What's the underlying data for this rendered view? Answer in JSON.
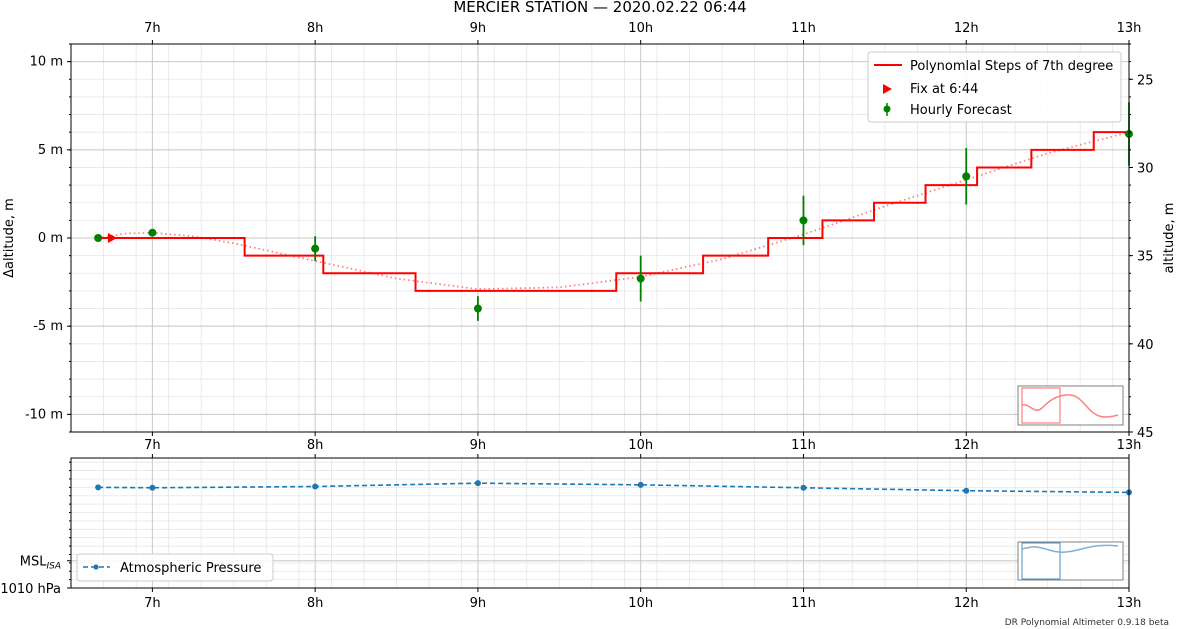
{
  "footer": "DR Polynomial Altimeter 0.9.18 beta",
  "chart_data": [
    {
      "type": "line",
      "title": "MERCIER STATION — 2020.02.22 06:44",
      "xlabel": "",
      "ylabel_left": "Δaltitude, m",
      "ylabel_right": "altitude, m",
      "xlim": [
        "06:30",
        "13:00"
      ],
      "ylim_left": [
        -11,
        11
      ],
      "ylim_right": [
        25,
        47
      ],
      "x_ticks": [
        "7h",
        "8h",
        "9h",
        "10h",
        "11h",
        "12h",
        "13h"
      ],
      "y_ticks_left": [
        "10 m",
        "5 m",
        "0 m",
        "-5 m",
        "-10 m"
      ],
      "y_ticks_right": [
        "25",
        "30",
        "35",
        "40",
        "45"
      ],
      "grid": true,
      "legend_position": "upper right",
      "legend": {
        "steps": "Polynomlal Steps of 7th degree",
        "fix": "Fix at 6:44",
        "forecast": "Hourly Forecast"
      },
      "colors": {
        "steps": "#ff0000",
        "fix": "#ff0000",
        "forecast": "#008000",
        "poly": "#ff7f7f"
      },
      "step_series": [
        {
          "x0": "06:40",
          "x1": "07:34",
          "y": 0
        },
        {
          "x0": "07:34",
          "x1": "08:03",
          "y": -1
        },
        {
          "x0": "08:03",
          "x1": "08:37",
          "y": -2
        },
        {
          "x0": "08:37",
          "x1": "09:51",
          "y": -3
        },
        {
          "x0": "09:51",
          "x1": "10:23",
          "y": -2
        },
        {
          "x0": "10:23",
          "x1": "10:47",
          "y": -1
        },
        {
          "x0": "10:47",
          "x1": "11:07",
          "y": 0
        },
        {
          "x0": "11:07",
          "x1": "11:26",
          "y": 1
        },
        {
          "x0": "11:26",
          "x1": "11:45",
          "y": 2
        },
        {
          "x0": "11:45",
          "x1": "12:04",
          "y": 3
        },
        {
          "x0": "12:04",
          "x1": "12:24",
          "y": 4
        },
        {
          "x0": "12:24",
          "x1": "12:47",
          "y": 5
        },
        {
          "x0": "12:47",
          "x1": "13:00",
          "y": 6
        }
      ],
      "poly_curve": [
        {
          "x": "06:40",
          "y": 0
        },
        {
          "x": "06:50",
          "y": 0.25
        },
        {
          "x": "07:00",
          "y": 0.3
        },
        {
          "x": "07:15",
          "y": 0.1
        },
        {
          "x": "07:30",
          "y": -0.3
        },
        {
          "x": "08:00",
          "y": -1.3
        },
        {
          "x": "08:30",
          "y": -2.3
        },
        {
          "x": "09:00",
          "y": -2.9
        },
        {
          "x": "09:30",
          "y": -2.8
        },
        {
          "x": "10:00",
          "y": -2.2
        },
        {
          "x": "10:30",
          "y": -1.2
        },
        {
          "x": "11:00",
          "y": 0.2
        },
        {
          "x": "11:30",
          "y": 1.8
        },
        {
          "x": "12:00",
          "y": 3.3
        },
        {
          "x": "12:30",
          "y": 4.8
        },
        {
          "x": "13:00",
          "y": 6.0
        }
      ],
      "fix_point": {
        "x": "06:44",
        "y": 0
      },
      "forecast": [
        {
          "x": "06:40",
          "y": 0.0,
          "err": 0
        },
        {
          "x": "07:00",
          "y": 0.3,
          "err": 0
        },
        {
          "x": "08:00",
          "y": -0.6,
          "err": 0.7
        },
        {
          "x": "09:00",
          "y": -4.0,
          "err": 0.7
        },
        {
          "x": "10:00",
          "y": -2.3,
          "err": 1.3
        },
        {
          "x": "11:00",
          "y": 1.0,
          "err": 1.4
        },
        {
          "x": "12:00",
          "y": 3.5,
          "err": 1.6
        },
        {
          "x": "13:00",
          "y": 5.9,
          "err": 1.8
        }
      ]
    },
    {
      "type": "line",
      "title": "",
      "xlim": [
        "06:30",
        "13:00"
      ],
      "x_ticks": [
        "7h",
        "8h",
        "9h",
        "10h",
        "11h",
        "12h",
        "13h"
      ],
      "y_ticks": [
        "MSL_ISA",
        "1010 hPa"
      ],
      "y_ticks_display": {
        "msl_main": "MSL",
        "msl_sub": "ISA",
        "bottom": "1010 hPa"
      },
      "grid": true,
      "legend_position": "lower left",
      "series": [
        {
          "name": "Atmospheric Pressure",
          "color": "#1f77b4",
          "style": "dashed",
          "points": [
            {
              "x": "06:40",
              "y": 1022.0
            },
            {
              "x": "07:00",
              "y": 1021.95
            },
            {
              "x": "08:00",
              "y": 1022.1
            },
            {
              "x": "09:00",
              "y": 1022.5
            },
            {
              "x": "10:00",
              "y": 1022.3
            },
            {
              "x": "11:00",
              "y": 1021.95
            },
            {
              "x": "12:00",
              "y": 1021.6
            },
            {
              "x": "13:00",
              "y": 1021.4
            }
          ]
        }
      ],
      "ylim": [
        1010,
        1025.5
      ]
    }
  ]
}
